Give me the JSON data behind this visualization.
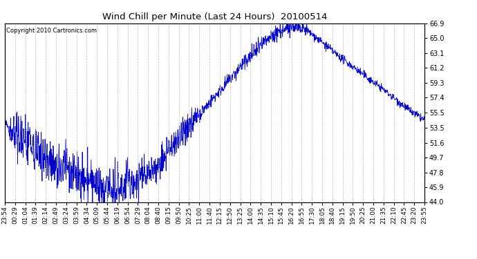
{
  "title": "Wind Chill per Minute (Last 24 Hours)  20100514",
  "copyright": "Copyright 2010 Cartronics.com",
  "line_color": "#0000cc",
  "bg_color": "#ffffff",
  "grid_color": "#bbbbbb",
  "yticks": [
    44.0,
    45.9,
    47.8,
    49.7,
    51.6,
    53.5,
    55.5,
    57.4,
    59.3,
    61.2,
    63.1,
    65.0,
    66.9
  ],
  "ymin": 44.0,
  "ymax": 66.9,
  "xtick_labels": [
    "23:54",
    "00:29",
    "01:04",
    "01:39",
    "02:14",
    "02:49",
    "03:24",
    "03:59",
    "04:34",
    "05:09",
    "05:44",
    "06:19",
    "06:54",
    "07:29",
    "08:04",
    "08:40",
    "09:15",
    "09:50",
    "10:25",
    "11:00",
    "11:40",
    "12:15",
    "12:50",
    "13:25",
    "14:00",
    "14:35",
    "15:10",
    "15:45",
    "16:20",
    "16:55",
    "17:30",
    "18:05",
    "18:40",
    "19:15",
    "19:50",
    "20:25",
    "21:00",
    "21:35",
    "22:10",
    "22:45",
    "23:20",
    "23:55"
  ],
  "figsize": [
    6.9,
    3.75
  ],
  "dpi": 100
}
